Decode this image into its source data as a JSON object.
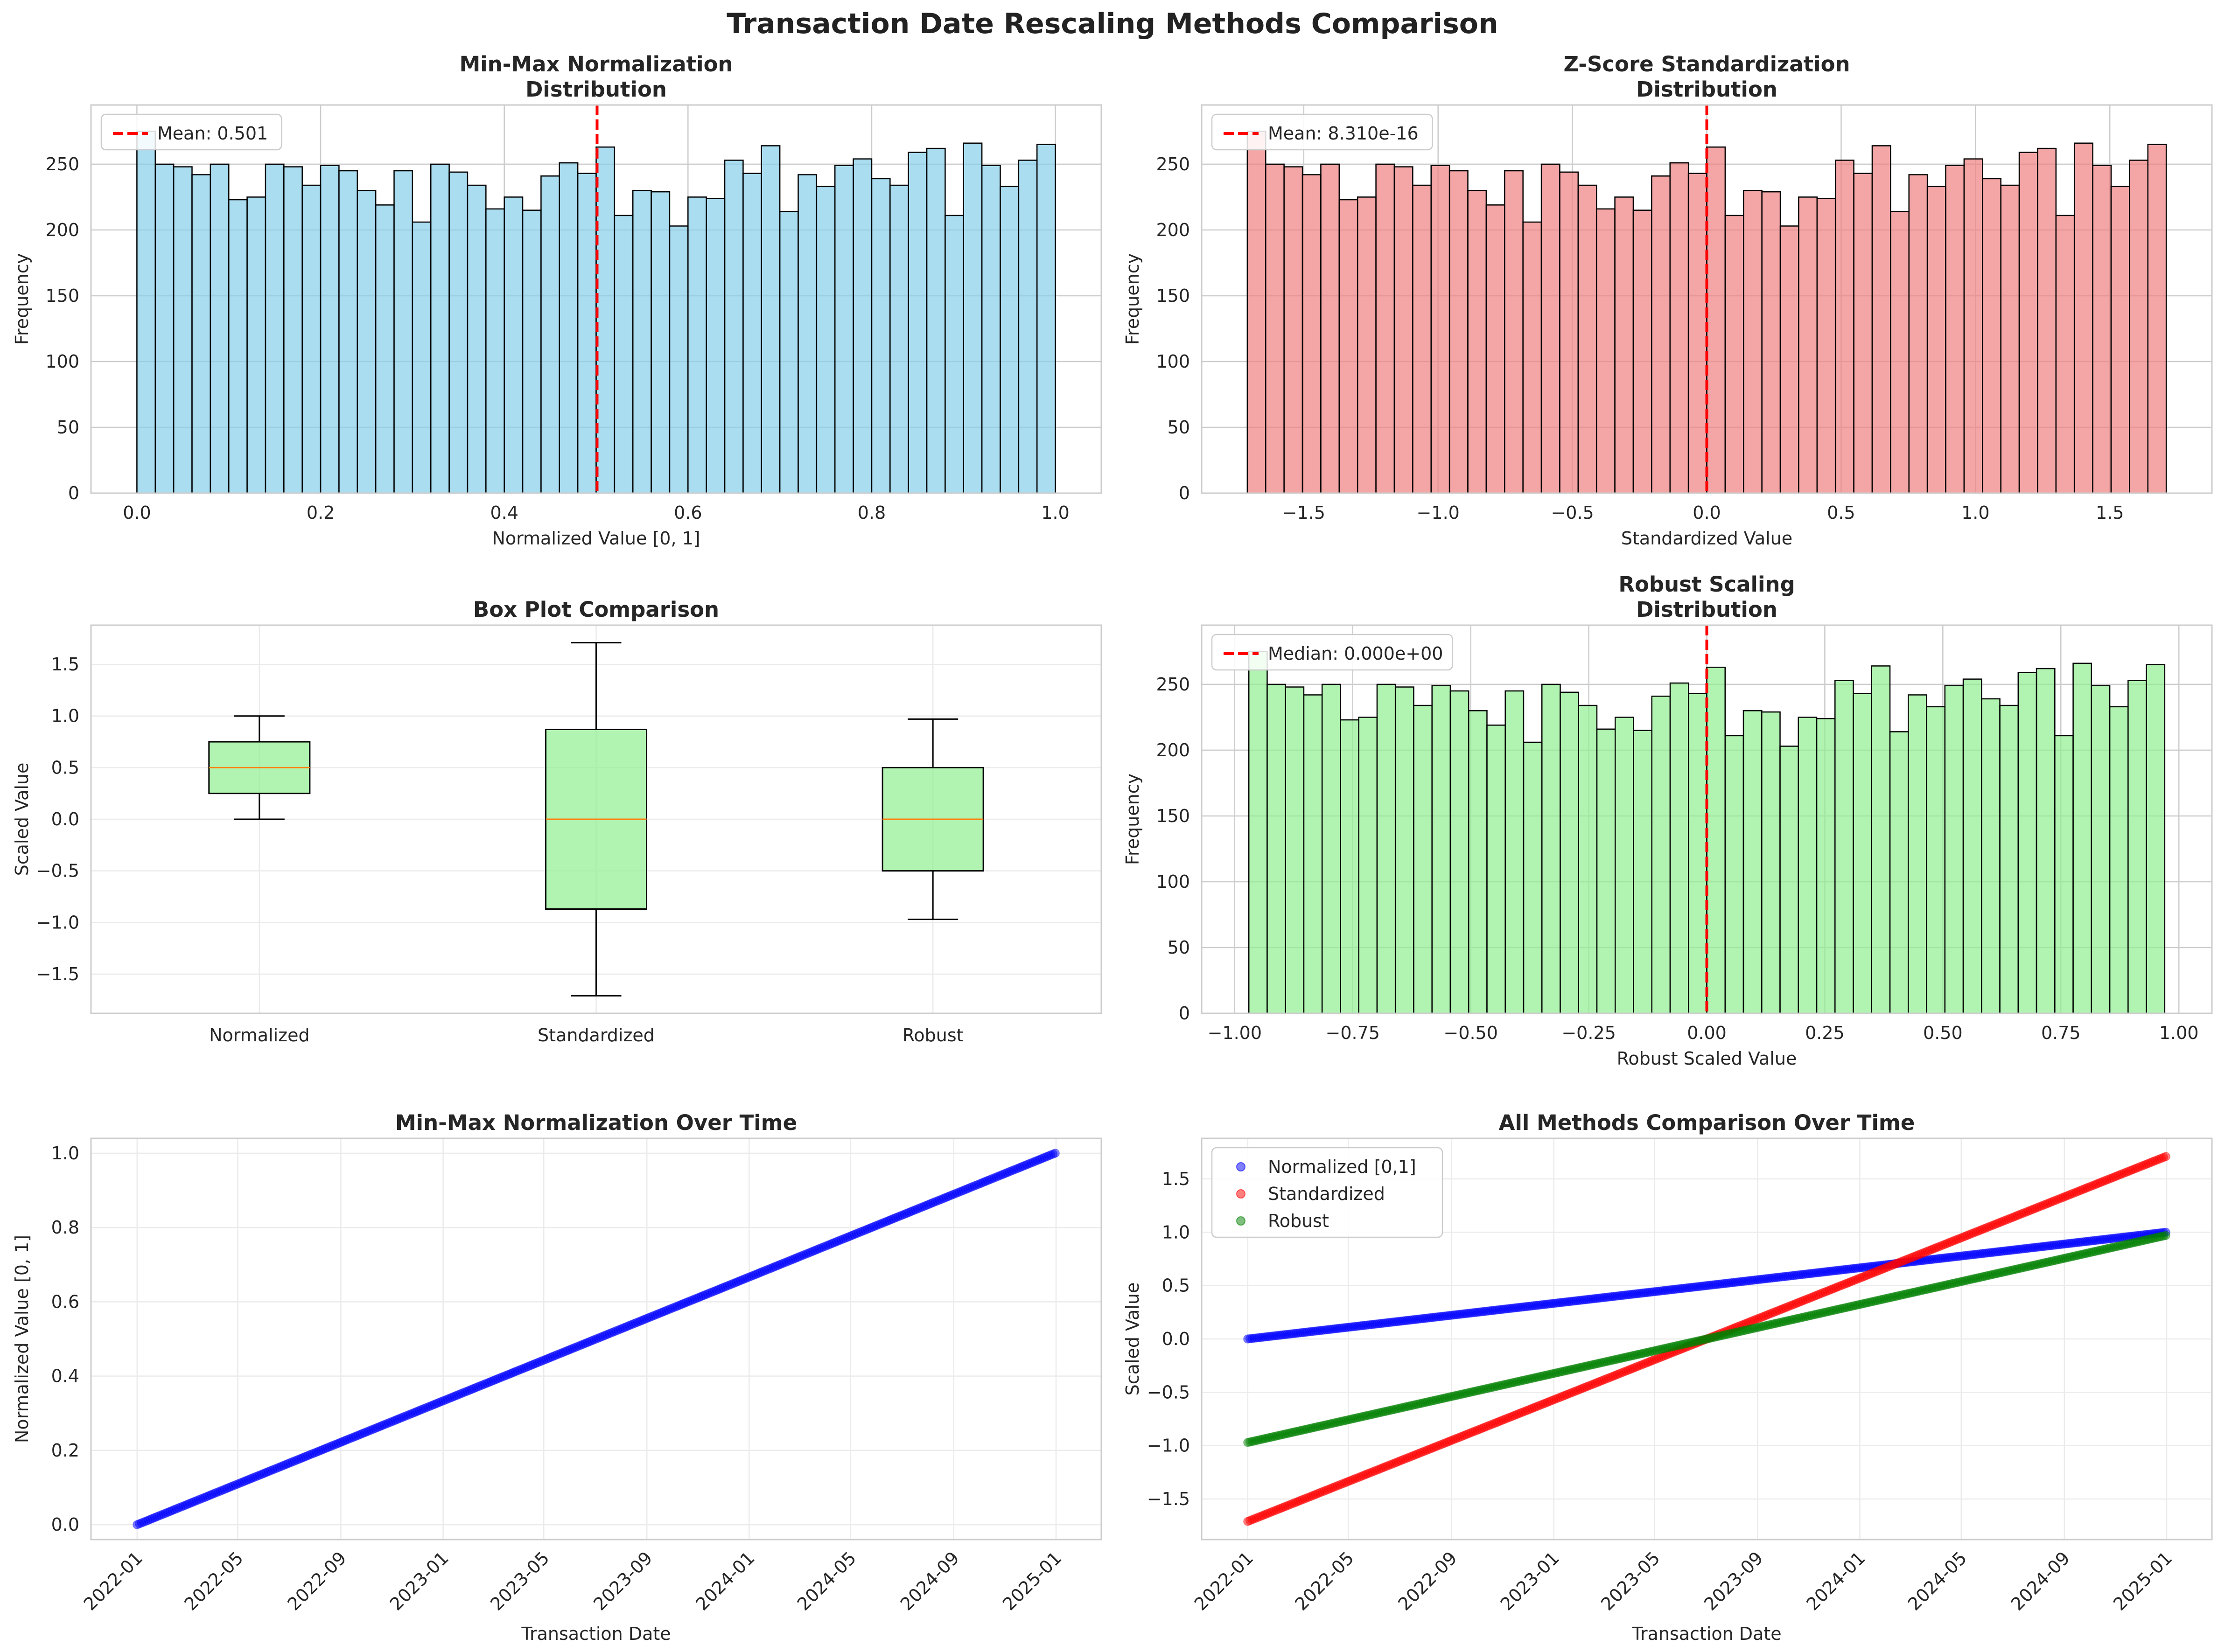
{
  "figure": {
    "title": "Transaction Date Rescaling Methods Comparison"
  },
  "colors": {
    "hist_normalized": "#87ceeb",
    "hist_standardized": "#f08080",
    "hist_robust": "#90ee90",
    "box_fill": "#90ee90",
    "median_line": "#ff7f0e",
    "mean_line": "#ff0000",
    "scatter_normalized": "#0000ff",
    "scatter_standardized": "#ff0000",
    "scatter_robust": "#008000"
  },
  "chart_data": [
    {
      "id": "hist-normalized",
      "type": "bar",
      "title_lines": [
        "Min-Max Normalization",
        "Distribution"
      ],
      "xlabel": "Normalized Value [0, 1]",
      "ylabel": "Frequency",
      "xlim": [
        -0.05,
        1.05
      ],
      "ylim": [
        0,
        295
      ],
      "bin_range": [
        0,
        1
      ],
      "xticks": [
        0.0,
        0.2,
        0.4,
        0.6,
        0.8,
        1.0
      ],
      "xtick_labels": [
        "0.0",
        "0.2",
        "0.4",
        "0.6",
        "0.8",
        "1.0"
      ],
      "yticks": [
        0,
        50,
        100,
        150,
        200,
        250
      ],
      "ytick_labels": [
        "0",
        "50",
        "100",
        "150",
        "200",
        "250"
      ],
      "values": [
        275,
        250,
        248,
        242,
        250,
        223,
        225,
        250,
        248,
        234,
        249,
        245,
        230,
        219,
        245,
        206,
        250,
        244,
        234,
        216,
        225,
        215,
        241,
        251,
        243,
        263,
        211,
        230,
        229,
        203,
        225,
        224,
        253,
        243,
        264,
        214,
        242,
        233,
        249,
        254,
        239,
        234,
        259,
        262,
        211,
        266,
        249,
        233,
        253,
        265
      ],
      "vline": {
        "x": 0.501,
        "label": "Mean: 0.501"
      },
      "legend": "upper left",
      "grid": true
    },
    {
      "id": "hist-standardized",
      "type": "bar",
      "title_lines": [
        "Z-Score Standardization",
        "Distribution"
      ],
      "xlabel": "Standardized Value",
      "ylabel": "Frequency",
      "xlim": [
        -1.88,
        1.88
      ],
      "ylim": [
        0,
        295
      ],
      "bin_range": [
        -1.71,
        1.71
      ],
      "xticks": [
        -1.5,
        -1.0,
        -0.5,
        0.0,
        0.5,
        1.0,
        1.5
      ],
      "xtick_labels": [
        "−1.5",
        "−1.0",
        "−0.5",
        "0.0",
        "0.5",
        "1.0",
        "1.5"
      ],
      "yticks": [
        0,
        50,
        100,
        150,
        200,
        250
      ],
      "ytick_labels": [
        "0",
        "50",
        "100",
        "150",
        "200",
        "250"
      ],
      "values": [
        275,
        250,
        248,
        242,
        250,
        223,
        225,
        250,
        248,
        234,
        249,
        245,
        230,
        219,
        245,
        206,
        250,
        244,
        234,
        216,
        225,
        215,
        241,
        251,
        243,
        263,
        211,
        230,
        229,
        203,
        225,
        224,
        253,
        243,
        264,
        214,
        242,
        233,
        249,
        254,
        239,
        234,
        259,
        262,
        211,
        266,
        249,
        233,
        253,
        265
      ],
      "vline": {
        "x": 0.0,
        "label": "Mean: 8.310e-16"
      },
      "legend": "upper left",
      "grid": true
    },
    {
      "id": "boxplot",
      "type": "box",
      "title_lines": [
        "Box Plot Comparison"
      ],
      "xlabel": "",
      "ylabel": "Scaled Value",
      "ylim": [
        -1.88,
        1.88
      ],
      "yticks": [
        -1.5,
        -1.0,
        -0.5,
        0.0,
        0.5,
        1.0,
        1.5
      ],
      "ytick_labels": [
        "−1.5",
        "−1.0",
        "−0.5",
        "0.0",
        "0.5",
        "1.0",
        "1.5"
      ],
      "categories": [
        "Normalized",
        "Standardized",
        "Robust"
      ],
      "boxes": [
        {
          "whislo": 0.0,
          "q1": 0.25,
          "med": 0.5,
          "q3": 0.75,
          "whishi": 1.0
        },
        {
          "whislo": -1.71,
          "q1": -0.87,
          "med": 0.0,
          "q3": 0.87,
          "whishi": 1.71
        },
        {
          "whislo": -0.97,
          "q1": -0.5,
          "med": 0.0,
          "q3": 0.5,
          "whishi": 0.97
        }
      ],
      "grid": true
    },
    {
      "id": "hist-robust",
      "type": "bar",
      "title_lines": [
        "Robust Scaling",
        "Distribution"
      ],
      "xlabel": "Robust Scaled Value",
      "ylabel": "Frequency",
      "xlim": [
        -1.07,
        1.07
      ],
      "ylim": [
        0,
        295
      ],
      "bin_range": [
        -0.97,
        0.97
      ],
      "xticks": [
        -1.0,
        -0.75,
        -0.5,
        -0.25,
        0.0,
        0.25,
        0.5,
        0.75,
        1.0
      ],
      "xtick_labels": [
        "−1.00",
        "−0.75",
        "−0.50",
        "−0.25",
        "0.00",
        "0.25",
        "0.50",
        "0.75",
        "1.00"
      ],
      "yticks": [
        0,
        50,
        100,
        150,
        200,
        250
      ],
      "ytick_labels": [
        "0",
        "50",
        "100",
        "150",
        "200",
        "250"
      ],
      "values": [
        275,
        250,
        248,
        242,
        250,
        223,
        225,
        250,
        248,
        234,
        249,
        245,
        230,
        219,
        245,
        206,
        250,
        244,
        234,
        216,
        225,
        215,
        241,
        251,
        243,
        263,
        211,
        230,
        229,
        203,
        225,
        224,
        253,
        243,
        264,
        214,
        242,
        233,
        249,
        254,
        239,
        234,
        259,
        262,
        211,
        266,
        249,
        233,
        253,
        265
      ],
      "vline": {
        "x": 0.0,
        "label": "Median: 0.000e+00"
      },
      "legend": "upper left",
      "grid": true
    },
    {
      "id": "scatter-normalized",
      "type": "scatter",
      "title_lines": [
        "Min-Max Normalization Over Time"
      ],
      "xlabel": "Transaction Date",
      "ylabel": "Normalized Value [0, 1]",
      "xlim": [
        "2021-11-07",
        "2025-02-24"
      ],
      "ylim": [
        -0.04,
        1.04
      ],
      "xticks": [
        "2022-01",
        "2022-05",
        "2022-09",
        "2023-01",
        "2023-05",
        "2023-09",
        "2024-01",
        "2024-05",
        "2024-09",
        "2025-01"
      ],
      "yticks": [
        0.0,
        0.2,
        0.4,
        0.6,
        0.8,
        1.0
      ],
      "ytick_labels": [
        "0.0",
        "0.2",
        "0.4",
        "0.6",
        "0.8",
        "1.0"
      ],
      "date_range": [
        "2022-01-01",
        "2024-12-31"
      ],
      "series": [
        {
          "name": "",
          "start": 0.0,
          "end": 1.0,
          "color_key": "scatter_normalized"
        }
      ],
      "grid": true
    },
    {
      "id": "scatter-all",
      "type": "scatter",
      "title_lines": [
        "All Methods Comparison Over Time"
      ],
      "xlabel": "Transaction Date",
      "ylabel": "Scaled Value",
      "xlim": [
        "2021-11-07",
        "2025-02-24"
      ],
      "ylim": [
        -1.88,
        1.88
      ],
      "xticks": [
        "2022-01",
        "2022-05",
        "2022-09",
        "2023-01",
        "2023-05",
        "2023-09",
        "2024-01",
        "2024-05",
        "2024-09",
        "2025-01"
      ],
      "yticks": [
        -1.5,
        -1.0,
        -0.5,
        0.0,
        0.5,
        1.0,
        1.5
      ],
      "ytick_labels": [
        "−1.5",
        "−1.0",
        "−0.5",
        "0.0",
        "0.5",
        "1.0",
        "1.5"
      ],
      "date_range": [
        "2022-01-01",
        "2024-12-31"
      ],
      "series": [
        {
          "name": "Normalized [0,1]",
          "start": 0.0,
          "end": 1.0,
          "color_key": "scatter_normalized"
        },
        {
          "name": "Standardized",
          "start": -1.71,
          "end": 1.71,
          "color_key": "scatter_standardized"
        },
        {
          "name": "Robust",
          "start": -0.97,
          "end": 0.97,
          "color_key": "scatter_robust"
        }
      ],
      "legend": "upper left",
      "grid": true
    }
  ]
}
